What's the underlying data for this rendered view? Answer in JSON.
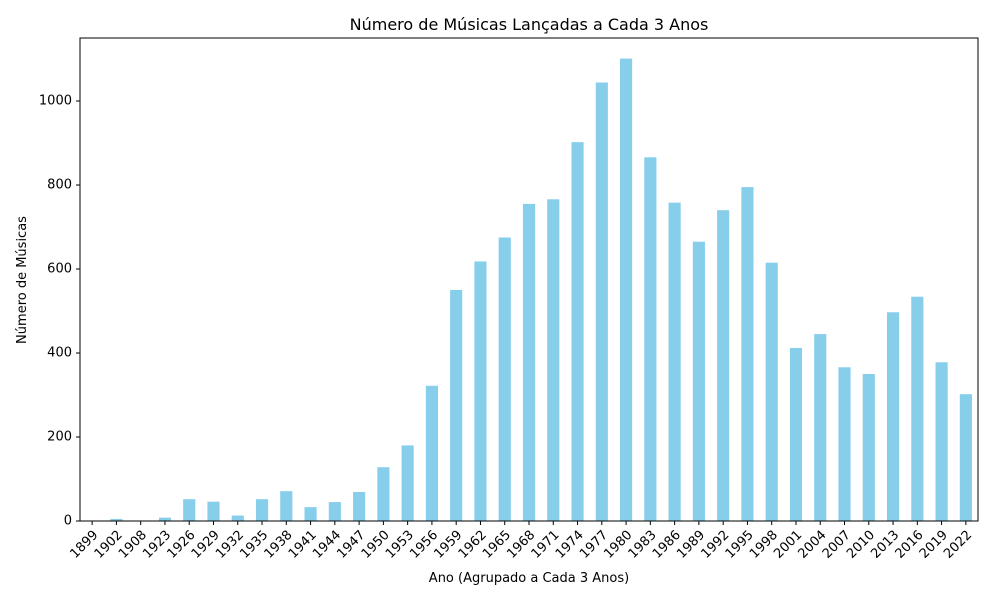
{
  "chart_data": {
    "type": "bar",
    "title": "Número de Músicas Lançadas a Cada 3 Anos",
    "xlabel": "Ano (Agrupado a Cada 3 Anos)",
    "ylabel": "Número de Músicas",
    "ylim": [
      0,
      1150
    ],
    "yticks": [
      0,
      200,
      400,
      600,
      800,
      1000
    ],
    "bar_color": "#87CEEB",
    "grid": false,
    "categories": [
      "1899",
      "1902",
      "1908",
      "1923",
      "1926",
      "1929",
      "1932",
      "1935",
      "1938",
      "1941",
      "1944",
      "1947",
      "1950",
      "1953",
      "1956",
      "1959",
      "1962",
      "1965",
      "1968",
      "1971",
      "1974",
      "1977",
      "1980",
      "1983",
      "1986",
      "1989",
      "1992",
      "1995",
      "1998",
      "2001",
      "2004",
      "2007",
      "2010",
      "2013",
      "2016",
      "2019",
      "2022"
    ],
    "values": [
      1,
      5,
      1,
      8,
      52,
      46,
      13,
      52,
      71,
      33,
      45,
      69,
      128,
      180,
      322,
      550,
      618,
      675,
      755,
      766,
      902,
      1044,
      1101,
      866,
      758,
      665,
      740,
      795,
      615,
      412,
      445,
      366,
      350,
      497,
      534,
      378,
      302
    ]
  }
}
